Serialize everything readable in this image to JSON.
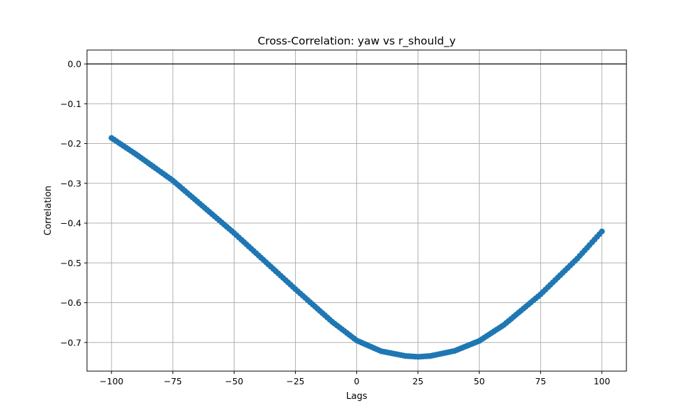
{
  "chart_data": {
    "type": "scatter",
    "title": "Cross-Correlation: yaw vs r_should_y",
    "xlabel": "Lags",
    "ylabel": "Correlation",
    "xlim": [
      -110,
      110
    ],
    "ylim": [
      -0.772,
      0.035
    ],
    "xticks": [
      -100,
      -75,
      -50,
      -25,
      0,
      25,
      50,
      75,
      100
    ],
    "xtick_labels": [
      "−100",
      "−75",
      "−50",
      "−25",
      "0",
      "25",
      "50",
      "75",
      "100"
    ],
    "yticks": [
      0.0,
      -0.1,
      -0.2,
      -0.3,
      -0.4,
      -0.5,
      -0.6,
      -0.7
    ],
    "ytick_labels": [
      "0.0",
      "−0.1",
      "−0.2",
      "−0.3",
      "−0.4",
      "−0.5",
      "−0.6",
      "−0.7"
    ],
    "grid": true,
    "reference_line_y": 0.0,
    "marker_color": "#1f77b4",
    "series": [
      {
        "x_range": [
          -100,
          100
        ],
        "x_step": 1,
        "anchors": [
          [
            -100,
            -0.186
          ],
          [
            -90,
            -0.227
          ],
          [
            -75,
            -0.293
          ],
          [
            -50,
            -0.425
          ],
          [
            -25,
            -0.566
          ],
          [
            -10,
            -0.648
          ],
          [
            0,
            -0.695
          ],
          [
            10,
            -0.722
          ],
          [
            20,
            -0.734
          ],
          [
            25,
            -0.736
          ],
          [
            30,
            -0.734
          ],
          [
            40,
            -0.721
          ],
          [
            50,
            -0.696
          ],
          [
            60,
            -0.656
          ],
          [
            75,
            -0.579
          ],
          [
            90,
            -0.489
          ],
          [
            100,
            -0.421
          ]
        ]
      }
    ]
  }
}
